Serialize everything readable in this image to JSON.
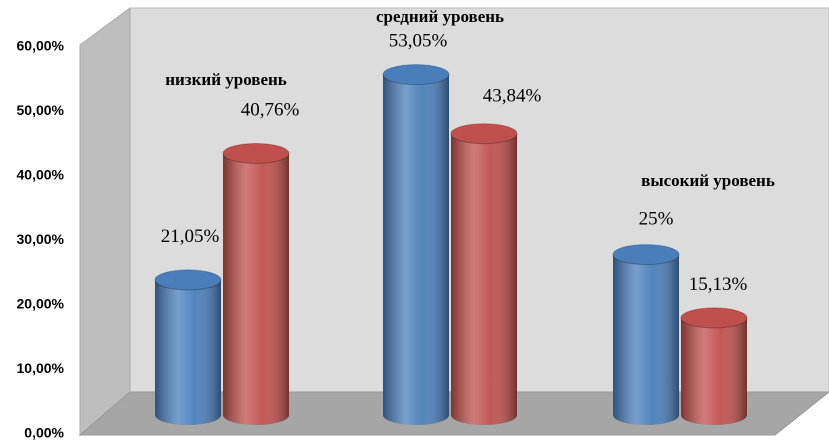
{
  "chart_data": {
    "type": "bar",
    "categories": [
      "низкий уровень",
      "средний уровень",
      "высокий уровень"
    ],
    "series": [
      {
        "color": "#4a7ebb",
        "values": [
          21.05,
          53.05,
          25
        ],
        "value_labels": [
          "21,05%",
          "53,05%",
          "25%"
        ]
      },
      {
        "color": "#c0504d",
        "values": [
          40.76,
          43.84,
          15.13
        ],
        "value_labels": [
          "40,76%",
          "43,84%",
          "15,13%"
        ]
      }
    ],
    "ylim": [
      0,
      60
    ],
    "yticks": [
      {
        "value": 0,
        "label": "0,00%"
      },
      {
        "value": 10,
        "label": "10,00%"
      },
      {
        "value": 20,
        "label": "20,00%"
      },
      {
        "value": 30,
        "label": "30,00%"
      },
      {
        "value": 40,
        "label": "40,00%"
      },
      {
        "value": 50,
        "label": "50,00%"
      },
      {
        "value": 60,
        "label": "60,00%"
      }
    ],
    "grid": false
  }
}
